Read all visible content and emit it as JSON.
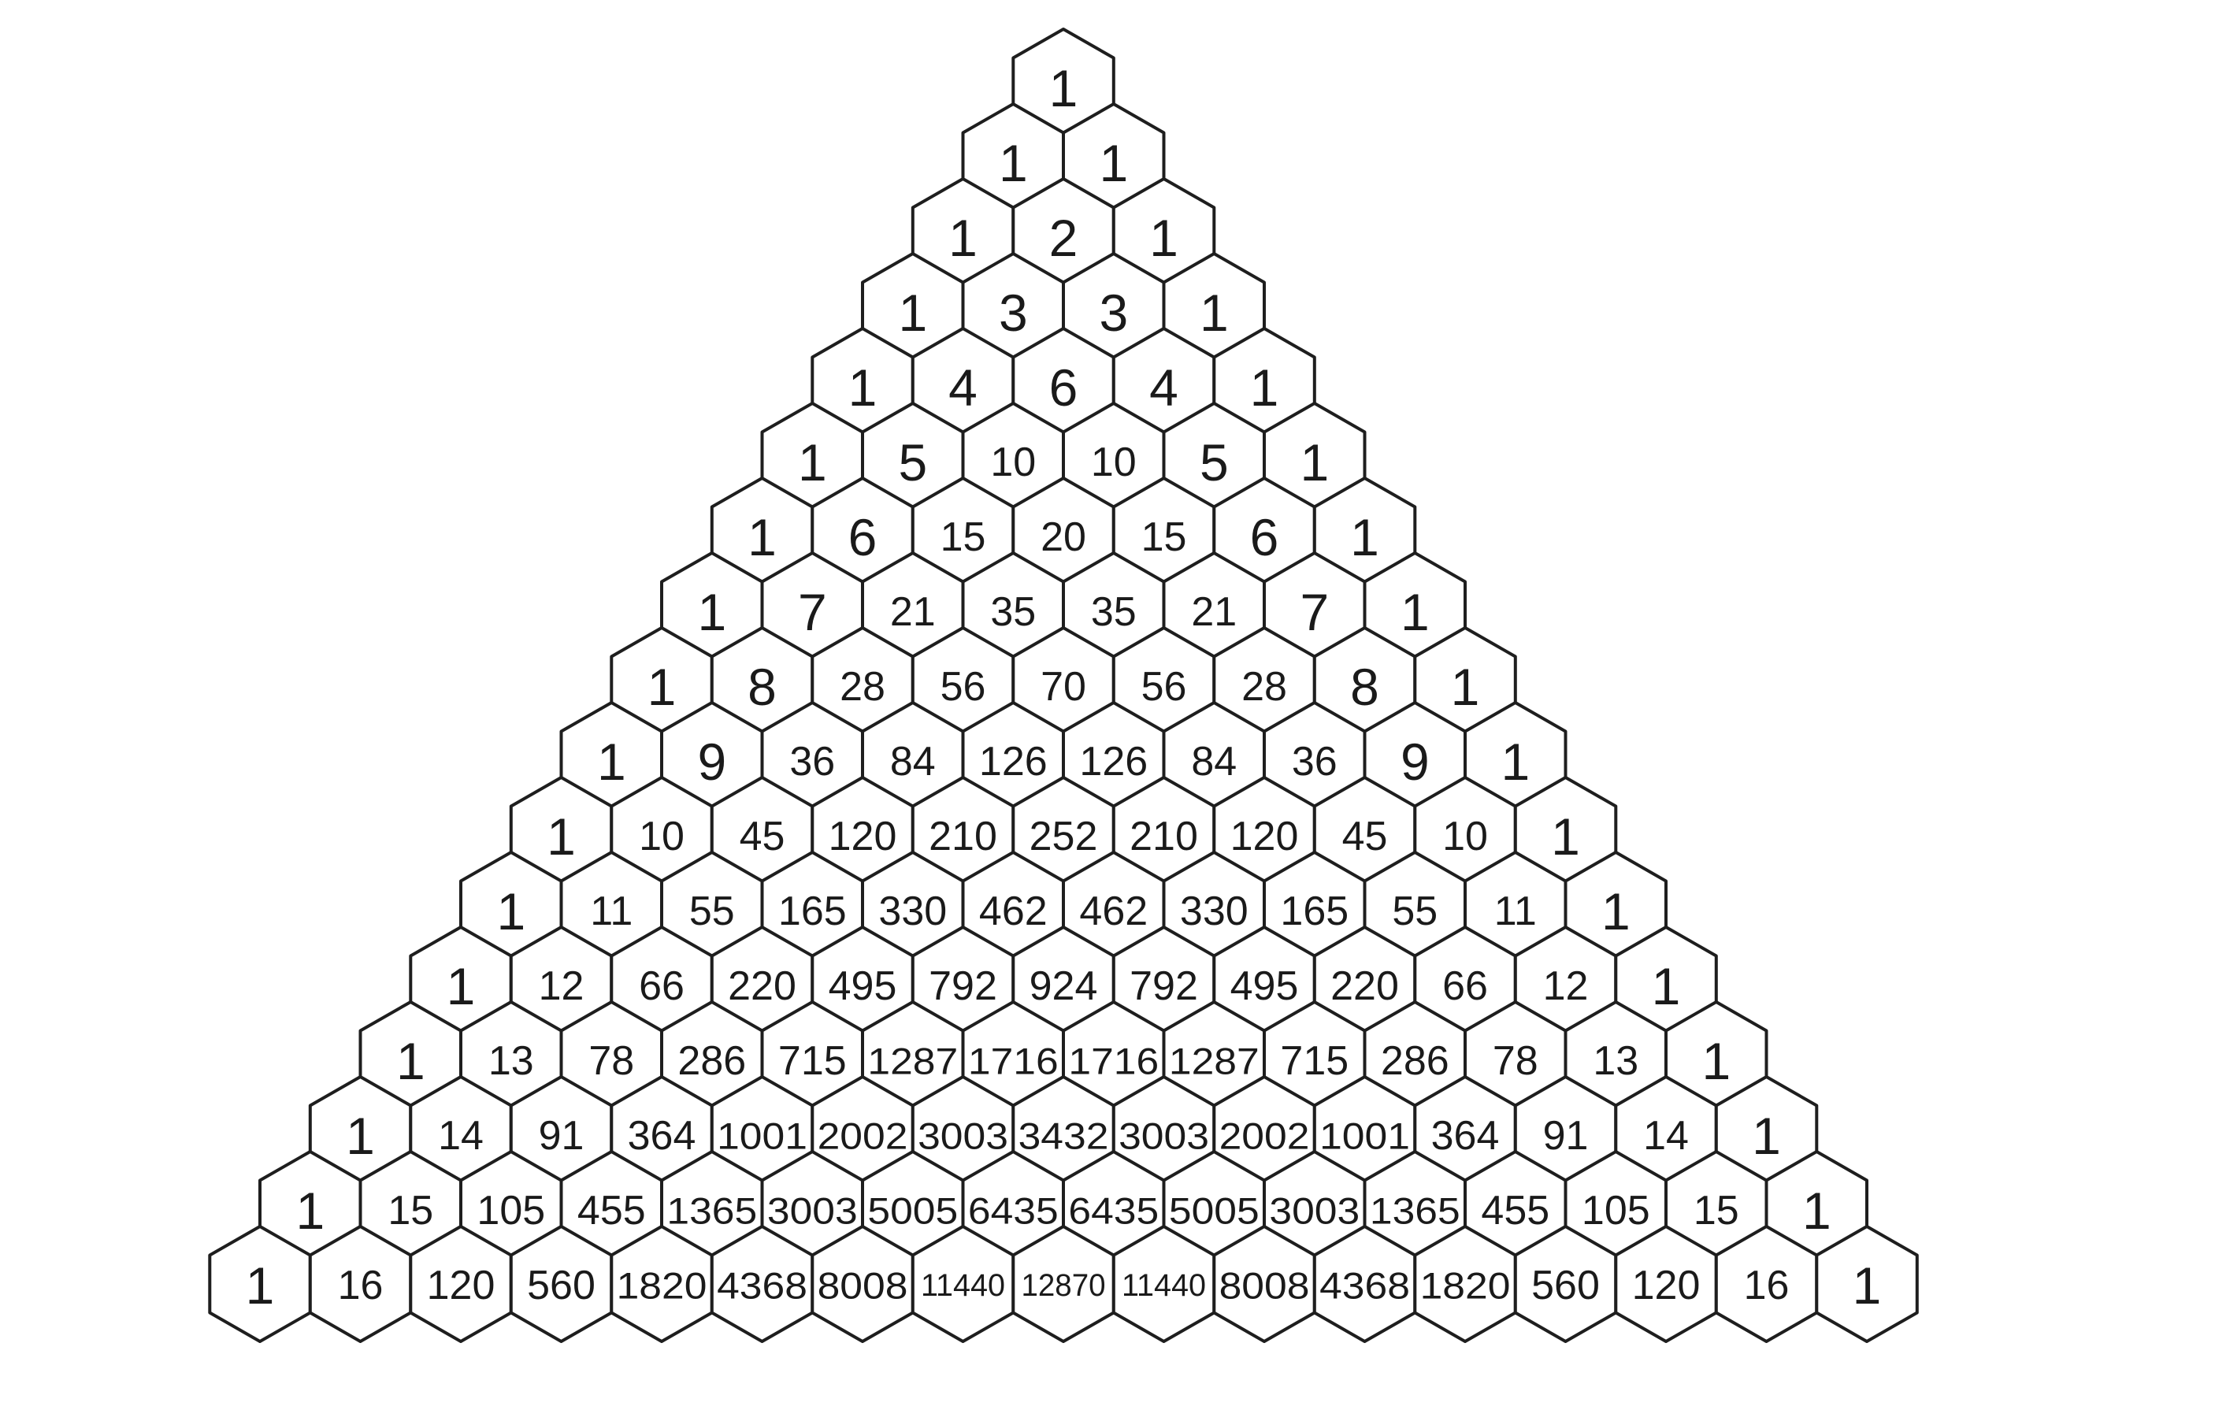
{
  "triangle": {
    "rows": [
      [
        "1"
      ],
      [
        "1",
        "1"
      ],
      [
        "1",
        "2",
        "1"
      ],
      [
        "1",
        "3",
        "3",
        "1"
      ],
      [
        "1",
        "4",
        "6",
        "4",
        "1"
      ],
      [
        "1",
        "5",
        "10",
        "10",
        "5",
        "1"
      ],
      [
        "1",
        "6",
        "15",
        "20",
        "15",
        "6",
        "1"
      ],
      [
        "1",
        "7",
        "21",
        "35",
        "35",
        "21",
        "7",
        "1"
      ],
      [
        "1",
        "8",
        "28",
        "56",
        "70",
        "56",
        "28",
        "8",
        "1"
      ],
      [
        "1",
        "9",
        "36",
        "84",
        "126",
        "126",
        "84",
        "36",
        "9",
        "1"
      ],
      [
        "1",
        "10",
        "45",
        "120",
        "210",
        "252",
        "210",
        "120",
        "45",
        "10",
        "1"
      ],
      [
        "1",
        "11",
        "55",
        "165",
        "330",
        "462",
        "462",
        "330",
        "165",
        "55",
        "11",
        "1"
      ],
      [
        "1",
        "12",
        "66",
        "220",
        "495",
        "792",
        "924",
        "792",
        "495",
        "220",
        "66",
        "12",
        "1"
      ],
      [
        "1",
        "13",
        "78",
        "286",
        "715",
        "1287",
        "1716",
        "1716",
        "1287",
        "715",
        "286",
        "78",
        "13",
        "1"
      ],
      [
        "1",
        "14",
        "91",
        "364",
        "1001",
        "2002",
        "3003",
        "3432",
        "3003",
        "2002",
        "1001",
        "364",
        "91",
        "14",
        "1"
      ],
      [
        "1",
        "15",
        "105",
        "455",
        "1365",
        "3003",
        "5005",
        "6435",
        "6435",
        "5005",
        "3003",
        "1365",
        "455",
        "105",
        "15",
        "1"
      ],
      [
        "1",
        "16",
        "120",
        "560",
        "1820",
        "4368",
        "8008",
        "11440",
        "12870",
        "11440",
        "8008",
        "4368",
        "1820",
        "560",
        "120",
        "16",
        "1"
      ]
    ]
  },
  "colors": {
    "background": "#ffffff",
    "cell_fill": "#ffffff",
    "cell_stroke": "#1e1e1e",
    "text": "#1a1a1a"
  }
}
